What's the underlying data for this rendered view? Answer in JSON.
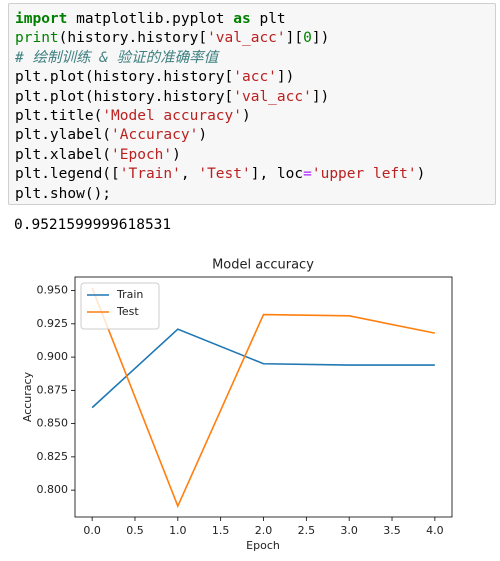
{
  "code_cell": {
    "lines": [
      "import matplotlib.pyplot as plt",
      "print(history.history['val_acc'][0])",
      "# 绘制训练 & 验证的准确率值",
      "plt.plot(history.history['acc'])",
      "plt.plot(history.history['val_acc'])",
      "plt.title('Model accuracy')",
      "plt.ylabel('Accuracy')",
      "plt.xlabel('Epoch')",
      "plt.legend(['Train', 'Test'], loc='upper left')",
      "plt.show();"
    ]
  },
  "output": {
    "text": "0.9521599999618531"
  },
  "chart_data": {
    "type": "line",
    "title": "Model accuracy",
    "x_label": "Epoch",
    "y_label": "Accuracy",
    "x": [
      0,
      1,
      2,
      3,
      4
    ],
    "series": [
      {
        "name": "Train",
        "color": "#1f77b4",
        "values": [
          0.862,
          0.921,
          0.895,
          0.894,
          0.894
        ]
      },
      {
        "name": "Test",
        "color": "#ff7f0e",
        "values": [
          0.952,
          0.788,
          0.932,
          0.931,
          0.918
        ]
      }
    ],
    "xlim": [
      -0.2,
      4.2
    ],
    "xticks": [
      {
        "value": 0,
        "label": "0.0"
      },
      0.5,
      {
        "value": 1,
        "label": "1.0"
      },
      1.5,
      {
        "value": 2,
        "label": "2.0"
      },
      2.5,
      {
        "value": 3,
        "label": "3.0"
      },
      3.5,
      {
        "value": 4,
        "label": "4.0"
      }
    ],
    "ylim": [
      0.7798,
      0.9602
    ],
    "yticks": [
      {
        "value": 0.8,
        "label": "0.800"
      },
      0.825,
      {
        "value": 0.85,
        "label": "0.850"
      },
      0.875,
      {
        "value": 0.9,
        "label": "0.900"
      },
      0.925,
      {
        "value": 0.95,
        "label": "0.950"
      }
    ],
    "legend": "upper left",
    "grid": false
  }
}
